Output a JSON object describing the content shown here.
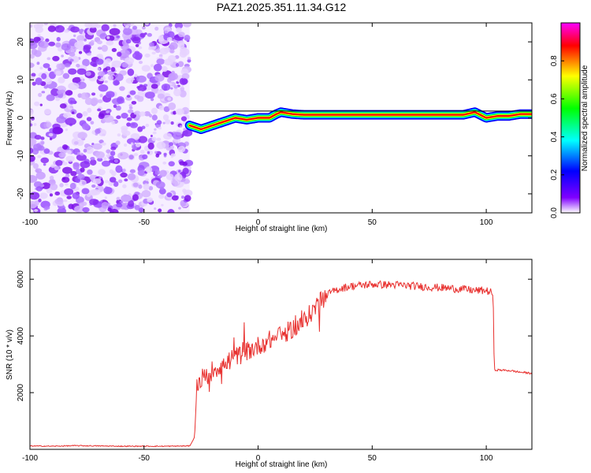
{
  "title": "PAZ1.2025.351.11.34.G12",
  "chart_data": [
    {
      "type": "heatmap",
      "xlabel": "Height of straight line (km)",
      "ylabel": "Frequency (Hz)",
      "xlim": [
        -100,
        120
      ],
      "ylim": [
        -25,
        25
      ],
      "xticks": [
        -100,
        -50,
        0,
        50,
        100
      ],
      "yticks": [
        -20,
        -10,
        0,
        10,
        20
      ],
      "noise_region_x": [
        -100,
        -30
      ],
      "ridge_line": {
        "x": [
          -30,
          -25,
          -20,
          -15,
          -10,
          -5,
          0,
          5,
          8,
          10,
          15,
          20,
          30,
          50,
          70,
          90,
          95,
          100,
          105,
          110,
          115,
          120
        ],
        "y": [
          -2,
          -3,
          -2,
          -1,
          0,
          -0.5,
          0,
          0,
          1,
          1.5,
          1,
          0.8,
          0.8,
          0.8,
          0.8,
          0.8,
          1.5,
          0,
          0.5,
          0.5,
          1,
          1
        ]
      },
      "colorbar": {
        "label": "Normalized spectral amplitude",
        "min": 0,
        "max": 1,
        "ticks": [
          "0.0",
          "0.2",
          "0.4",
          "0.6",
          "0.8"
        ],
        "colors": [
          "#ffffff",
          "#8000ff",
          "#0000ff",
          "#00ffff",
          "#00ff00",
          "#ffff00",
          "#ff0000",
          "#ff00ff"
        ]
      }
    },
    {
      "type": "line",
      "xlabel": "Height of straight line (km)",
      "ylabel": "SNR (10 * v/v)",
      "xlim": [
        -100,
        120
      ],
      "ylim": [
        0,
        6700
      ],
      "xticks": [
        -100,
        -50,
        0,
        50,
        100
      ],
      "yticks": [
        2000,
        4000,
        6000
      ],
      "series": [
        {
          "name": "SNR",
          "color": "#e8302e",
          "x": [
            -100,
            -90,
            -80,
            -70,
            -60,
            -50,
            -40,
            -30,
            -28,
            -27,
            -25,
            -22,
            -20,
            -15,
            -10,
            -5,
            0,
            5,
            10,
            15,
            20,
            25,
            30,
            35,
            40,
            50,
            60,
            70,
            80,
            90,
            95,
            100,
            103,
            103.5,
            105,
            110,
            115,
            120
          ],
          "y": [
            120,
            110,
            130,
            120,
            110,
            110,
            110,
            120,
            400,
            2200,
            2500,
            2600,
            2800,
            3000,
            3250,
            3450,
            3650,
            3850,
            4000,
            4250,
            4500,
            5000,
            5450,
            5650,
            5750,
            5820,
            5800,
            5750,
            5700,
            5650,
            5600,
            5600,
            5500,
            2800,
            2800,
            2780,
            2720,
            2680
          ]
        }
      ]
    }
  ]
}
